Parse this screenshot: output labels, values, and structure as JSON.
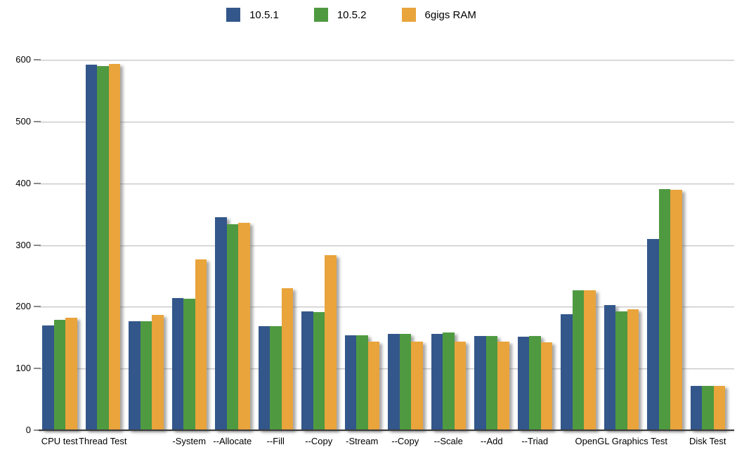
{
  "chart_data": {
    "type": "bar",
    "title": "",
    "xlabel": "",
    "ylabel": "",
    "categories": [
      "CPU test",
      "Thread Test",
      "",
      "-System",
      "--Allocate",
      "--Fill",
      "--Copy",
      "-Stream",
      "--Copy",
      "--Scale",
      "--Add",
      "--Triad",
      "",
      "OpenGL Graphics Test",
      "",
      "Disk Test"
    ],
    "series": [
      {
        "name": "10.5.1",
        "color": "#33578B",
        "values": [
          170,
          592,
          177,
          214,
          345,
          169,
          192,
          154,
          156,
          156,
          153,
          151,
          188,
          203,
          310,
          72
        ]
      },
      {
        "name": "10.5.2",
        "color": "#4F9A41",
        "values": [
          179,
          590,
          176,
          213,
          334,
          169,
          191,
          154,
          156,
          158,
          153,
          153,
          227,
          192,
          391,
          72
        ]
      },
      {
        "name": "6gigs RAM",
        "color": "#E9A43C",
        "values": [
          182,
          593,
          187,
          277,
          336,
          230,
          284,
          143,
          144,
          144,
          143,
          142,
          227,
          196,
          389,
          72
        ]
      }
    ],
    "ylim": [
      0,
      600
    ],
    "yticks": [
      0,
      100,
      200,
      300,
      400,
      500,
      600
    ],
    "grid": true,
    "legend_position": "top"
  },
  "colors": {
    "background": "#FFFFFF",
    "gridline": "#C6C6C6",
    "tick": "#8A8A8A",
    "axis_line": "#3D3D3D",
    "text": "#000000"
  }
}
